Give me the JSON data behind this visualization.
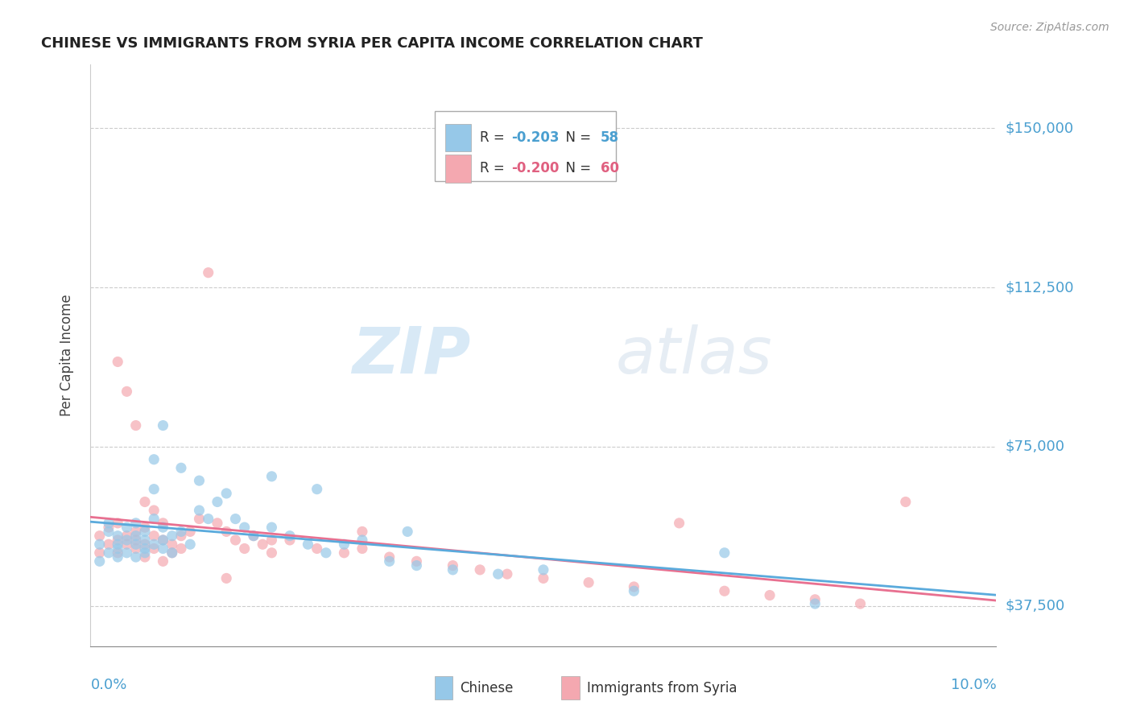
{
  "title": "CHINESE VS IMMIGRANTS FROM SYRIA PER CAPITA INCOME CORRELATION CHART",
  "source": "Source: ZipAtlas.com",
  "ylabel": "Per Capita Income",
  "xmin": 0.0,
  "xmax": 0.1,
  "ymin": 28000,
  "ymax": 165000,
  "yticks": [
    37500,
    75000,
    112500,
    150000
  ],
  "ytick_labels": [
    "$37,500",
    "$75,000",
    "$112,500",
    "$150,000"
  ],
  "legend_line1_r": "R = ",
  "legend_line1_rv": "-0.203",
  "legend_line1_n": "  N = ",
  "legend_line1_nv": "58",
  "legend_line2_r": "R = ",
  "legend_line2_rv": "-0.200",
  "legend_line2_n": "  N = ",
  "legend_line2_nv": "60",
  "legend_label1": "Chinese",
  "legend_label2": "Immigrants from Syria",
  "color_chinese": "#96c8e8",
  "color_syria": "#f4a8b0",
  "color_chinese_line": "#5aaadc",
  "color_syria_line": "#e87090",
  "color_text_blue": "#4a9fd0",
  "color_text_red": "#e06080",
  "color_axis": "#888888",
  "color_grid": "#cccccc",
  "watermark_zip": "ZIP",
  "watermark_atlas": "atlas",
  "chinese_x": [
    0.001,
    0.001,
    0.002,
    0.002,
    0.002,
    0.003,
    0.003,
    0.003,
    0.003,
    0.004,
    0.004,
    0.004,
    0.005,
    0.005,
    0.005,
    0.005,
    0.006,
    0.006,
    0.006,
    0.006,
    0.007,
    0.007,
    0.007,
    0.008,
    0.008,
    0.008,
    0.009,
    0.009,
    0.01,
    0.011,
    0.012,
    0.013,
    0.014,
    0.015,
    0.016,
    0.017,
    0.018,
    0.02,
    0.022,
    0.024,
    0.026,
    0.028,
    0.03,
    0.033,
    0.036,
    0.04,
    0.045,
    0.05,
    0.06,
    0.07,
    0.007,
    0.008,
    0.01,
    0.012,
    0.02,
    0.025,
    0.035,
    0.08
  ],
  "chinese_y": [
    52000,
    48000,
    55000,
    50000,
    57000,
    52000,
    49000,
    54000,
    51000,
    53000,
    56000,
    50000,
    54000,
    52000,
    49000,
    57000,
    53000,
    51000,
    55000,
    50000,
    65000,
    58000,
    52000,
    53000,
    56000,
    51000,
    54000,
    50000,
    55000,
    52000,
    60000,
    58000,
    62000,
    64000,
    58000,
    56000,
    54000,
    56000,
    54000,
    52000,
    50000,
    52000,
    53000,
    48000,
    47000,
    46000,
    45000,
    46000,
    41000,
    50000,
    72000,
    80000,
    70000,
    67000,
    68000,
    65000,
    55000,
    38000
  ],
  "syria_x": [
    0.001,
    0.001,
    0.002,
    0.002,
    0.003,
    0.003,
    0.003,
    0.004,
    0.004,
    0.005,
    0.005,
    0.005,
    0.006,
    0.006,
    0.006,
    0.007,
    0.007,
    0.008,
    0.008,
    0.009,
    0.009,
    0.01,
    0.01,
    0.011,
    0.012,
    0.013,
    0.014,
    0.015,
    0.016,
    0.017,
    0.018,
    0.019,
    0.02,
    0.022,
    0.025,
    0.028,
    0.03,
    0.033,
    0.036,
    0.04,
    0.043,
    0.046,
    0.05,
    0.055,
    0.06,
    0.065,
    0.07,
    0.075,
    0.08,
    0.085,
    0.003,
    0.004,
    0.005,
    0.006,
    0.007,
    0.008,
    0.015,
    0.02,
    0.03,
    0.09
  ],
  "syria_y": [
    54000,
    50000,
    56000,
    52000,
    53000,
    57000,
    50000,
    54000,
    52000,
    55000,
    51000,
    53000,
    52000,
    56000,
    49000,
    54000,
    51000,
    53000,
    57000,
    52000,
    50000,
    54000,
    51000,
    55000,
    58000,
    116000,
    57000,
    55000,
    53000,
    51000,
    54000,
    52000,
    50000,
    53000,
    51000,
    50000,
    51000,
    49000,
    48000,
    47000,
    46000,
    45000,
    44000,
    43000,
    42000,
    57000,
    41000,
    40000,
    39000,
    38000,
    95000,
    88000,
    80000,
    62000,
    60000,
    48000,
    44000,
    53000,
    55000,
    62000
  ]
}
